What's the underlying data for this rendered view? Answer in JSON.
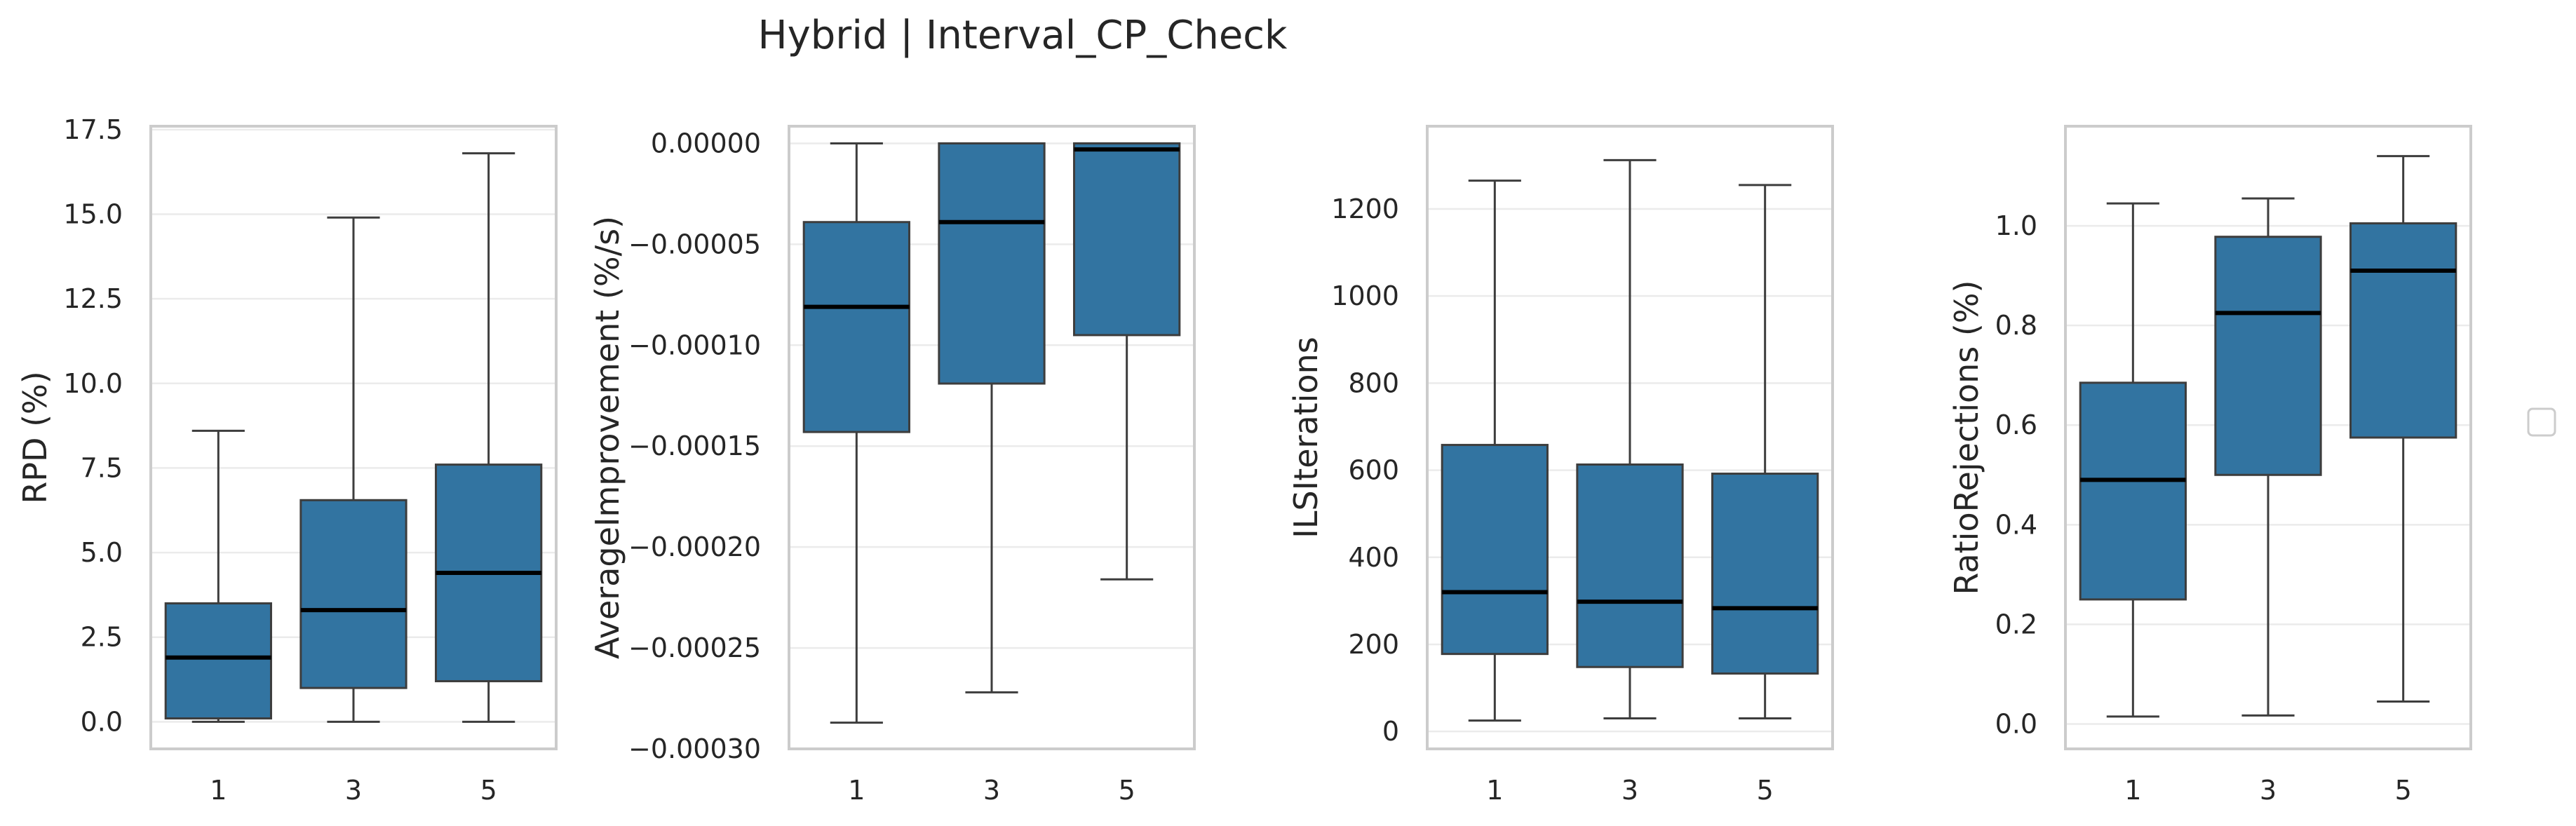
{
  "figure": {
    "title": "Hybrid | Interval_CP_Check",
    "box_color": "#3274a1",
    "median_color": "#000000",
    "legend_placement": "center-right",
    "legend_entries": []
  },
  "chart_data": [
    {
      "type": "box",
      "categories": [
        "1",
        "3",
        "5"
      ],
      "ylabel": "RPD (%)",
      "ylim": [
        -0.8,
        17.6
      ],
      "yticks": [
        0.0,
        2.5,
        5.0,
        7.5,
        10.0,
        12.5,
        15.0,
        17.5
      ],
      "ytick_labels": [
        "0.0",
        "2.5",
        "5.0",
        "7.5",
        "10.0",
        "12.5",
        "15.0",
        "17.5"
      ],
      "grid": true,
      "boxes": [
        {
          "category": "1",
          "whisker_low": 0.0,
          "q1": 0.1,
          "median": 1.9,
          "q3": 3.5,
          "whisker_high": 8.6
        },
        {
          "category": "3",
          "whisker_low": 0.0,
          "q1": 1.0,
          "median": 3.3,
          "q3": 6.55,
          "whisker_high": 14.9
        },
        {
          "category": "5",
          "whisker_low": 0.0,
          "q1": 1.2,
          "median": 4.4,
          "q3": 7.6,
          "whisker_high": 16.8
        }
      ]
    },
    {
      "type": "box",
      "categories": [
        "1",
        "3",
        "5"
      ],
      "ylabel": "AverageImprovement (%/s)",
      "ylim": [
        -0.0003,
        8.5e-06
      ],
      "yticks": [
        -0.0003,
        -0.00025,
        -0.0002,
        -0.00015,
        -0.0001,
        -5e-05,
        0.0
      ],
      "ytick_labels": [
        "−0.00030",
        "−0.00025",
        "−0.00020",
        "−0.00015",
        "−0.00010",
        "−0.00005",
        "0.00000"
      ],
      "grid": true,
      "boxes": [
        {
          "category": "1",
          "whisker_low": -0.000287,
          "q1": -0.000143,
          "median": -8.1e-05,
          "q3": -3.9e-05,
          "whisker_high": 0.0
        },
        {
          "category": "3",
          "whisker_low": -0.000272,
          "q1": -0.000119,
          "median": -3.9e-05,
          "q3": 0.0,
          "whisker_high": 0.0
        },
        {
          "category": "5",
          "whisker_low": -0.000216,
          "q1": -9.5e-05,
          "median": -3e-06,
          "q3": 0.0,
          "whisker_high": 0.0
        }
      ]
    },
    {
      "type": "box",
      "categories": [
        "1",
        "3",
        "5"
      ],
      "ylabel": "ILSIterations",
      "ylim": [
        -40,
        1390
      ],
      "yticks": [
        0,
        200,
        400,
        600,
        800,
        1000,
        1200
      ],
      "ytick_labels": [
        "0",
        "200",
        "400",
        "600",
        "800",
        "1000",
        "1200"
      ],
      "grid": true,
      "boxes": [
        {
          "category": "1",
          "whisker_low": 25,
          "q1": 178,
          "median": 320,
          "q3": 658,
          "whisker_high": 1265
        },
        {
          "category": "3",
          "whisker_low": 30,
          "q1": 148,
          "median": 298,
          "q3": 613,
          "whisker_high": 1312
        },
        {
          "category": "5",
          "whisker_low": 30,
          "q1": 133,
          "median": 283,
          "q3": 592,
          "whisker_high": 1255
        }
      ]
    },
    {
      "type": "box",
      "categories": [
        "1",
        "3",
        "5"
      ],
      "ylabel": "RatioRejections (%)",
      "ylim": [
        -0.05,
        1.2
      ],
      "yticks": [
        0.0,
        0.2,
        0.4,
        0.6,
        0.8,
        1.0
      ],
      "ytick_labels": [
        "0.0",
        "0.2",
        "0.4",
        "0.6",
        "0.8",
        "1.0"
      ],
      "grid": true,
      "boxes": [
        {
          "category": "1",
          "whisker_low": 0.015,
          "q1": 0.25,
          "median": 0.49,
          "q3": 0.685,
          "whisker_high": 1.045
        },
        {
          "category": "3",
          "whisker_low": 0.017,
          "q1": 0.5,
          "median": 0.825,
          "q3": 0.978,
          "whisker_high": 1.055
        },
        {
          "category": "5",
          "whisker_low": 0.045,
          "q1": 0.575,
          "median": 0.91,
          "q3": 1.005,
          "whisker_high": 1.14
        }
      ]
    }
  ]
}
